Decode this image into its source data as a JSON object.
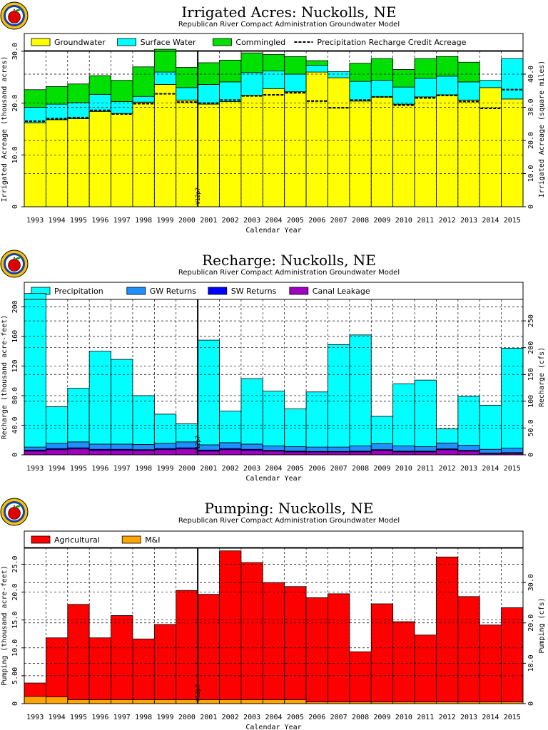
{
  "chart_data": [
    {
      "type": "bar",
      "title": "Irrigated Acres: Nuckolls, NE",
      "subtitle": "Republican River Compact Administration Groundwater Model",
      "xlabel": "Calendar Year",
      "ylabel": "Irrigated Acreage (thousand acres)",
      "ylabel_right": "Irrigated Acreage (square miles)",
      "ylim": [
        0,
        30
      ],
      "yticks": [
        0,
        10.0,
        20.0,
        30.0
      ],
      "yticks_right": [
        0,
        10.0,
        20.0,
        30.0,
        40.0
      ],
      "ratio_right": 1.5625,
      "stacked": true,
      "grid": true,
      "legend_position": "top",
      "categories": [
        "1993",
        "1994",
        "1995",
        "1996",
        "1997",
        "1998",
        "1999",
        "2000",
        "2001",
        "2002",
        "2003",
        "2004",
        "2005",
        "2006",
        "2007",
        "2008",
        "2009",
        "2010",
        "2011",
        "2012",
        "2013",
        "2014",
        "2015"
      ],
      "series": [
        {
          "name": "Groundwater",
          "color": "#ffff00",
          "values": [
            16.2,
            16.8,
            17.0,
            18.4,
            18.0,
            20.2,
            23.6,
            20.6,
            19.8,
            20.3,
            21.5,
            22.8,
            22.2,
            26.0,
            24.9,
            20.4,
            21.2,
            19.8,
            21.2,
            21.6,
            20.6,
            23.0,
            20.8
          ]
        },
        {
          "name": "Surface Water",
          "color": "#00ffff",
          "values": [
            3.0,
            3.0,
            3.1,
            3.3,
            2.3,
            1.1,
            2.4,
            2.4,
            3.8,
            3.8,
            4.4,
            3.4,
            3.4,
            1.3,
            1.2,
            3.8,
            3.2,
            3.3,
            3.6,
            3.6,
            3.5,
            1.4,
            7.8
          ]
        },
        {
          "name": "Commingled",
          "color": "#00e000",
          "values": [
            3.4,
            3.4,
            3.6,
            3.6,
            4.1,
            5.7,
            4.4,
            3.9,
            4.2,
            4.2,
            3.8,
            3.2,
            3.4,
            0.9,
            0.0,
            3.5,
            4.2,
            3.4,
            3.8,
            3.8,
            3.8,
            0.0,
            0.0
          ]
        }
      ],
      "lines": [
        {
          "name": "Precipitation Recharge Credit Acreage",
          "style": "dashed",
          "values": [
            16.5,
            17.0,
            17.2,
            18.6,
            17.9,
            19.9,
            21.8,
            20.2,
            20.0,
            20.6,
            21.4,
            21.6,
            22.0,
            20.4,
            19.1,
            20.6,
            21.2,
            19.6,
            21.0,
            21.5,
            20.3,
            19.0,
            22.6
          ]
        }
      ],
      "marker": {
        "label": "V12p7",
        "after_category": "2000"
      }
    },
    {
      "type": "bar",
      "title": "Recharge: Nuckolls, NE",
      "subtitle": "Republican River Compact Administration Groundwater Model",
      "xlabel": "Calendar Year",
      "ylabel": "Recharge (thousand acre-feet)",
      "ylabel_right": "Recharge (cfs)",
      "ylim": [
        0,
        210
      ],
      "yticks": [
        0,
        40.0,
        80.0,
        120,
        160,
        200
      ],
      "yticks_right": [
        0,
        50.0,
        100,
        150,
        200,
        250
      ],
      "ratio_right": 1.3813,
      "stacked": true,
      "grid": true,
      "legend_position": "top",
      "categories": [
        "1993",
        "1994",
        "1995",
        "1996",
        "1997",
        "1998",
        "1999",
        "2000",
        "2001",
        "2002",
        "2003",
        "2004",
        "2005",
        "2006",
        "2007",
        "2008",
        "2009",
        "2010",
        "2011",
        "2012",
        "2013",
        "2014",
        "2015"
      ],
      "series": [
        {
          "name": "Canal Leakage",
          "color": "#a000c0",
          "values": [
            5.0,
            7.0,
            8.0,
            6.0,
            6.0,
            6.0,
            7.0,
            8.0,
            5.0,
            7.0,
            6.0,
            5.0,
            4.0,
            4.0,
            4.0,
            4.0,
            6.0,
            4.0,
            4.0,
            7.0,
            5.0,
            2.0,
            2.0
          ]
        },
        {
          "name": "SW Returns",
          "color": "#0000ff",
          "values": [
            1.5,
            1.5,
            1.5,
            1.5,
            1.5,
            1.0,
            1.5,
            1.5,
            1.5,
            1.5,
            1.5,
            1.0,
            1.0,
            0.5,
            0.5,
            1.0,
            1.0,
            1.0,
            1.0,
            1.0,
            1.0,
            0.5,
            1.0
          ]
        },
        {
          "name": "GW Returns",
          "color": "#1e90ff",
          "values": [
            4.0,
            7.0,
            8.0,
            7.0,
            7.0,
            7.0,
            7.0,
            8.0,
            7.0,
            8.0,
            7.0,
            6.0,
            6.0,
            6.0,
            6.0,
            7.0,
            8.0,
            7.0,
            6.0,
            8.0,
            7.0,
            5.0,
            6.0
          ]
        },
        {
          "name": "Precipitation",
          "color": "#00ffff",
          "values": [
            207.5,
            49.5,
            72.5,
            125.5,
            114.5,
            66.0,
            39.5,
            24.5,
            141.5,
            42.5,
            88.5,
            74.0,
            51.0,
            74.5,
            138.5,
            150.0,
            37.0,
            84.0,
            90.0,
            19.0,
            66.0,
            59.5,
            135.0
          ]
        }
      ],
      "marker": {
        "label": "V12p7",
        "after_category": "2000"
      }
    },
    {
      "type": "bar",
      "title": "Pumping: Nuckolls, NE",
      "subtitle": "Republican River Compact Administration Groundwater Model",
      "xlabel": "Calendar Year",
      "ylabel": "Pumping (thousand acre-feet)",
      "ylabel_right": "Pumping (cfs)",
      "ylim": [
        0,
        28
      ],
      "yticks": [
        0,
        5.0,
        10.0,
        15.0,
        20.0,
        25.0
      ],
      "yticks_right": [
        0,
        10.0,
        20.0,
        30.0
      ],
      "ratio_right": 1.3813,
      "stacked": true,
      "grid": true,
      "legend_position": "top",
      "categories": [
        "1993",
        "1994",
        "1995",
        "1996",
        "1997",
        "1998",
        "1999",
        "2000",
        "2001",
        "2002",
        "2003",
        "2004",
        "2005",
        "2006",
        "2007",
        "2008",
        "2009",
        "2010",
        "2011",
        "2012",
        "2013",
        "2014",
        "2015"
      ],
      "series": [
        {
          "name": "M&I",
          "color": "#ffa500",
          "values": [
            1.3,
            1.2,
            0.7,
            0.7,
            0.7,
            0.7,
            0.7,
            0.7,
            0.7,
            0.7,
            0.7,
            0.7,
            0.7,
            0.3,
            0.3,
            0.3,
            0.3,
            0.3,
            0.3,
            0.3,
            0.3,
            0.3,
            0.3
          ]
        },
        {
          "name": "Agricultural",
          "color": "#ff0000",
          "values": [
            2.4,
            10.6,
            17.1,
            11.1,
            15.1,
            10.9,
            13.5,
            19.6,
            18.9,
            26.7,
            24.6,
            21.0,
            20.3,
            18.7,
            19.4,
            9.0,
            17.6,
            14.4,
            12.0,
            26.0,
            18.9,
            13.8,
            16.9
          ]
        }
      ],
      "legend_order": [
        "Agricultural",
        "M&I"
      ],
      "marker": {
        "label": "V12p7",
        "after_category": "2000"
      }
    }
  ]
}
